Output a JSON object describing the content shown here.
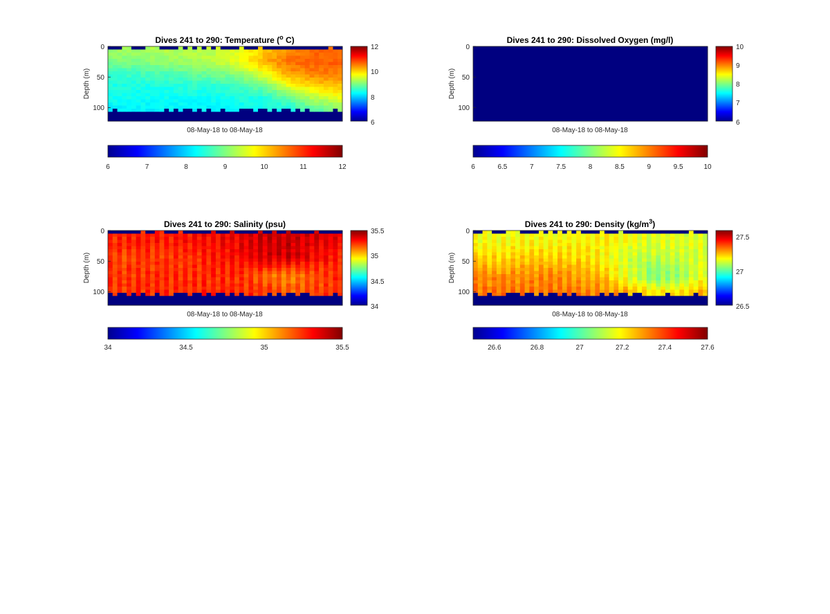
{
  "figure": {
    "panels": [
      {
        "title": "Dives 241 to 290: Temperature (",
        "title_sup": "o",
        "title_tail": " C)",
        "xlabel": "08-May-18 to 08-May-18",
        "ylabel": "Depth (m)",
        "yticks": [
          "0",
          "50",
          "100"
        ],
        "cbar_vertical_ticks": [
          "12",
          "10",
          "8",
          "6"
        ],
        "cbar_horizontal_ticks": [
          "6",
          "7",
          "8",
          "9",
          "10",
          "11",
          "12"
        ]
      },
      {
        "title": "Dives 241 to 290: Dissolved Oxygen (mg/l)",
        "title_sup": "",
        "title_tail": "",
        "xlabel": "08-May-18 to 08-May-18",
        "ylabel": "Depth (m)",
        "yticks": [
          "0",
          "50",
          "100"
        ],
        "cbar_vertical_ticks": [
          "10",
          "9",
          "8",
          "7",
          "6"
        ],
        "cbar_horizontal_ticks": [
          "6",
          "6.5",
          "7",
          "7.5",
          "8",
          "8.5",
          "9",
          "9.5",
          "10"
        ]
      },
      {
        "title": "Dives 241 to 290: Salinity (psu)",
        "title_sup": "",
        "title_tail": "",
        "xlabel": "08-May-18 to 08-May-18",
        "ylabel": "Depth (m)",
        "yticks": [
          "0",
          "50",
          "100"
        ],
        "cbar_vertical_ticks": [
          "35.5",
          "35",
          "34.5",
          "34"
        ],
        "cbar_horizontal_ticks": [
          "34",
          "34.5",
          "35",
          "35.5"
        ]
      },
      {
        "title": "Dives 241 to 290: Density (kg/m",
        "title_sup": "3",
        "title_tail": ")",
        "xlabel": "08-May-18 to 08-May-18",
        "ylabel": "Depth (m)",
        "yticks": [
          "0",
          "50",
          "100"
        ],
        "cbar_vertical_ticks": [
          "27.5",
          "27",
          "26.5"
        ],
        "cbar_horizontal_ticks": [
          "26.6",
          "26.8",
          "27",
          "27.2",
          "27.4",
          "27.6"
        ]
      }
    ]
  },
  "chart_data": [
    {
      "type": "heatmap",
      "title": "Dives 241 to 290: Temperature (o C)",
      "xlabel": "08-May-18 to 08-May-18",
      "ylabel": "Depth (m)",
      "variable": "temperature",
      "unit": "°C",
      "dives": [
        241,
        290
      ],
      "ylim": [
        0,
        122
      ],
      "y_reversed": true,
      "yticks": [
        0,
        50,
        100
      ],
      "clim": [
        6,
        12
      ],
      "colormap": "jet",
      "profile_depths": [
        5,
        15,
        25,
        35,
        45,
        55,
        65,
        75,
        85,
        95,
        105
      ],
      "profiles_by_depth": {
        "5": [
          9.2,
          9.2,
          9.3,
          9.3,
          9.4,
          9.6,
          10.0,
          10.4,
          10.6,
          10.6
        ],
        "25": [
          9.0,
          9.0,
          9.1,
          9.2,
          9.3,
          9.6,
          10.2,
          10.6,
          10.7,
          10.7
        ],
        "45": [
          8.6,
          8.6,
          8.7,
          8.8,
          8.9,
          9.1,
          9.6,
          10.3,
          10.5,
          10.5
        ],
        "65": [
          8.4,
          8.4,
          8.4,
          8.5,
          8.5,
          8.6,
          8.9,
          9.6,
          10.0,
          10.1
        ],
        "85": [
          8.3,
          8.3,
          8.3,
          8.3,
          8.3,
          8.4,
          8.4,
          8.8,
          9.3,
          9.6
        ],
        "105": [
          8.2,
          8.2,
          8.2,
          8.2,
          8.2,
          8.2,
          8.3,
          8.4,
          8.7,
          9.0
        ]
      },
      "no_data_fill": "bottom and surface gaps shown at colormap minimum"
    },
    {
      "type": "heatmap",
      "title": "Dives 241 to 290: Dissolved Oxygen (mg/l)",
      "xlabel": "08-May-18 to 08-May-18",
      "ylabel": "Depth (m)",
      "variable": "dissolved_oxygen",
      "unit": "mg/l",
      "dives": [
        241,
        290
      ],
      "ylim": [
        0,
        122
      ],
      "y_reversed": true,
      "yticks": [
        0,
        50,
        100
      ],
      "clim": [
        6,
        10
      ],
      "colormap": "jet",
      "uniform_value": 6
    },
    {
      "type": "heatmap",
      "title": "Dives 241 to 290: Salinity (psu)",
      "xlabel": "08-May-18 to 08-May-18",
      "ylabel": "Depth (m)",
      "variable": "salinity",
      "unit": "psu",
      "dives": [
        241,
        290
      ],
      "ylim": [
        0,
        122
      ],
      "y_reversed": true,
      "yticks": [
        0,
        50,
        100
      ],
      "clim": [
        34,
        35.5
      ],
      "colormap": "jet",
      "profiles_by_depth": {
        "15": [
          35.3,
          35.31,
          35.32,
          35.33,
          35.35,
          35.38,
          35.42,
          35.43,
          35.4,
          35.38
        ],
        "45": [
          35.25,
          35.26,
          35.27,
          35.28,
          35.3,
          35.34,
          35.4,
          35.42,
          35.36,
          35.3
        ],
        "75": [
          35.27,
          35.27,
          35.28,
          35.28,
          35.29,
          35.28,
          35.2,
          35.15,
          35.22,
          35.3
        ],
        "100": [
          35.28,
          35.28,
          35.29,
          35.29,
          35.3,
          35.3,
          35.28,
          35.22,
          35.25,
          35.3
        ]
      }
    },
    {
      "type": "heatmap",
      "title": "Dives 241 to 290: Density (kg/m3)",
      "xlabel": "08-May-18 to 08-May-18",
      "ylabel": "Depth (m)",
      "variable": "density",
      "unit": "kg/m³",
      "dives": [
        241,
        290
      ],
      "ylim": [
        0,
        122
      ],
      "y_reversed": true,
      "yticks": [
        0,
        50,
        100
      ],
      "clim": [
        26.5,
        27.6
      ],
      "colormap": "jet",
      "profiles_by_depth": {
        "15": [
          27.2,
          27.2,
          27.21,
          27.21,
          27.22,
          27.22,
          27.2,
          27.18,
          27.18,
          27.18
        ],
        "45": [
          27.26,
          27.26,
          27.27,
          27.27,
          27.26,
          27.22,
          27.16,
          27.14,
          27.16,
          27.18
        ],
        "75": [
          27.34,
          27.34,
          27.34,
          27.34,
          27.32,
          27.28,
          27.18,
          27.08,
          27.1,
          27.2
        ],
        "100": [
          27.36,
          27.36,
          27.36,
          27.36,
          27.35,
          27.34,
          27.3,
          27.22,
          27.24,
          27.3
        ]
      }
    }
  ]
}
